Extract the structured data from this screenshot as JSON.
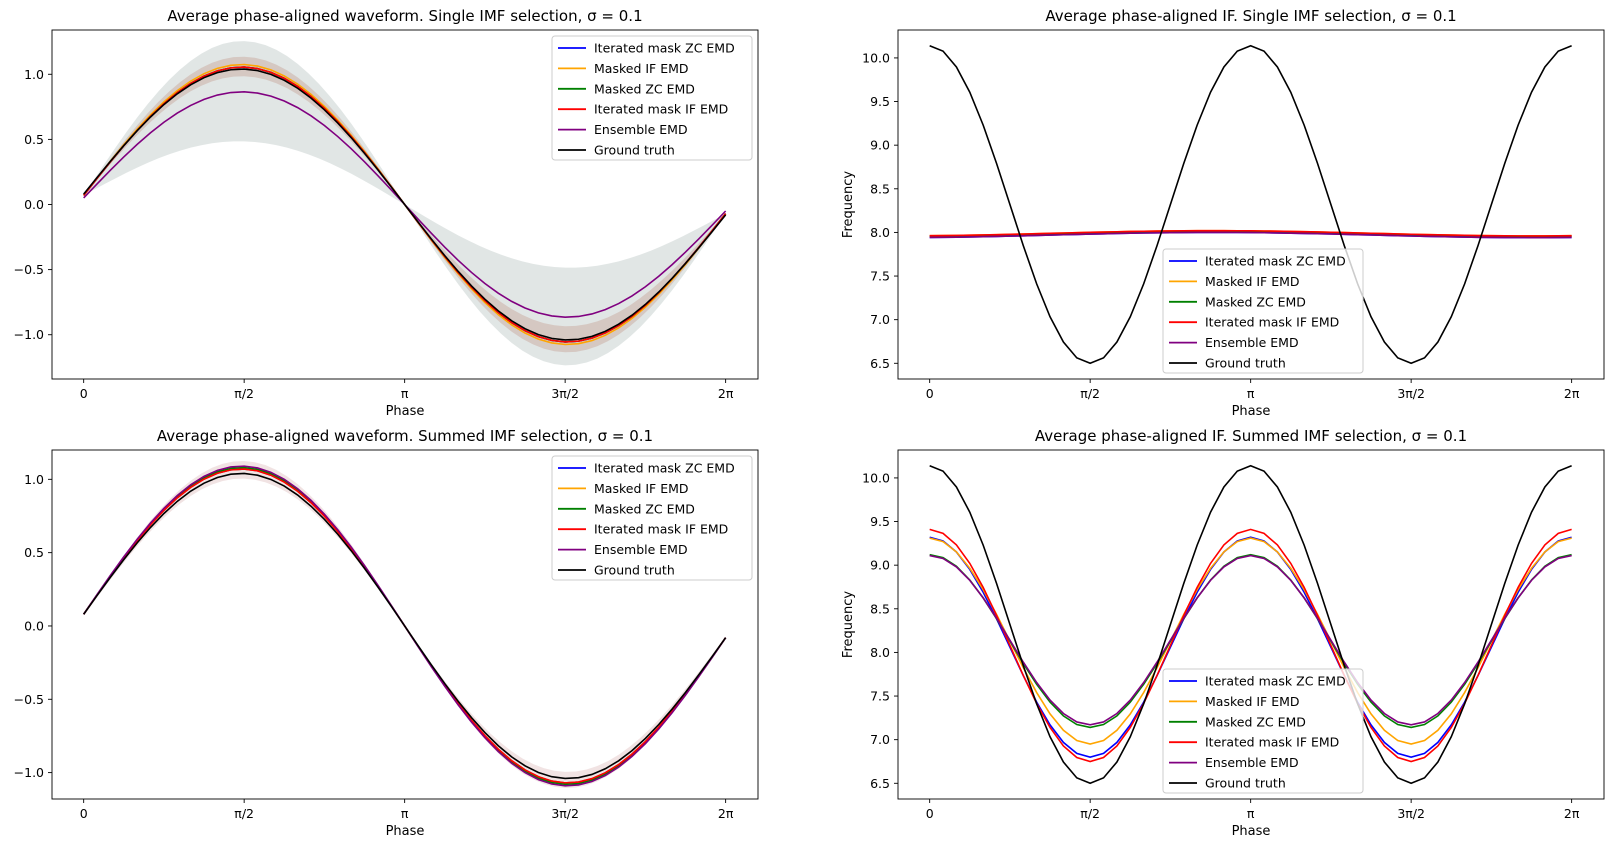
{
  "chart_data": [
    {
      "type": "line",
      "title": "Average phase-aligned waveform. Single IMF selection, σ = 0.1",
      "xlabel": "Phase",
      "ylabel": "",
      "xlim": [
        -0.31,
        6.6
      ],
      "ylim": [
        -1.34,
        1.34
      ],
      "xticks": [
        0,
        1.5708,
        3.1416,
        4.7124,
        6.2832
      ],
      "xticklabels": [
        "0",
        "π/2",
        "π",
        "3π/2",
        "2π"
      ],
      "yticks": [
        -1.0,
        -0.5,
        0.0,
        0.5,
        1.0
      ],
      "yticklabels": [
        "−1.0",
        "−0.5",
        "0.0",
        "0.5",
        "1.0"
      ],
      "legend": "top-right",
      "bands": [
        {
          "color": "#c8d2cf",
          "opacity": 0.55,
          "scale_pos": 1.22,
          "scale_neg": 1.2,
          "inner_pos": 0.45,
          "inner_neg": 0.45
        },
        {
          "color": "#c09080",
          "opacity": 0.35,
          "scale_pos": 1.1,
          "scale_neg": 1.1,
          "inner_pos": 0.95,
          "inner_neg": 0.9
        }
      ],
      "series": [
        {
          "name": "Iterated mask ZC EMD",
          "color": "#0000ff",
          "kind": "sine",
          "amp": 1.02,
          "offset_start": 0.07
        },
        {
          "name": "Masked IF EMD",
          "color": "#ffa500",
          "kind": "sine",
          "amp": 1.04,
          "offset_start": 0.07
        },
        {
          "name": "Masked ZC EMD",
          "color": "#008000",
          "kind": "sine",
          "amp": 1.02,
          "offset_start": 0.07
        },
        {
          "name": "Iterated mask IF EMD",
          "color": "#ff0000",
          "kind": "sine",
          "amp": 1.02,
          "offset_start": 0.07
        },
        {
          "name": "Ensemble EMD",
          "color": "#800080",
          "kind": "sine",
          "amp": 0.84,
          "offset_start": 0.05
        },
        {
          "name": "Ground truth",
          "color": "#000000",
          "kind": "sine",
          "amp": 1.0,
          "offset_start": 0.08
        }
      ]
    },
    {
      "type": "line",
      "title": "Average phase-aligned IF. Single IMF selection, σ = 0.1",
      "xlabel": "Phase",
      "ylabel": "Frequency",
      "xlim": [
        -0.31,
        6.6
      ],
      "ylim": [
        6.32,
        10.32
      ],
      "xticks": [
        0,
        1.5708,
        3.1416,
        4.7124,
        6.2832
      ],
      "xticklabels": [
        "0",
        "π/2",
        "π",
        "3π/2",
        "2π"
      ],
      "yticks": [
        6.5,
        7.0,
        7.5,
        8.0,
        8.5,
        9.0,
        9.5,
        10.0
      ],
      "yticklabels": [
        "6.5",
        "7.0",
        "7.5",
        "8.0",
        "8.5",
        "9.0",
        "9.5",
        "10.0"
      ],
      "legend": "lower-center",
      "series": [
        {
          "name": "Iterated mask ZC EMD",
          "color": "#0000ff",
          "kind": "flat",
          "base": 7.97,
          "wobble": 0.03
        },
        {
          "name": "Masked IF EMD",
          "color": "#ffa500",
          "kind": "flat",
          "base": 7.99,
          "wobble": 0.03
        },
        {
          "name": "Masked ZC EMD",
          "color": "#008000",
          "kind": "flat",
          "base": 7.98,
          "wobble": 0.025
        },
        {
          "name": "Iterated mask IF EMD",
          "color": "#ff0000",
          "kind": "flat",
          "base": 7.99,
          "wobble": 0.03
        },
        {
          "name": "Ensemble EMD",
          "color": "#800080",
          "kind": "flat",
          "base": 7.97,
          "wobble": 0.03
        },
        {
          "name": "Ground truth",
          "color": "#000000",
          "kind": "cos2",
          "mid": 8.32,
          "amp": 1.82
        }
      ]
    },
    {
      "type": "line",
      "title": "Average phase-aligned waveform. Summed IMF selection, σ = 0.1",
      "xlabel": "Phase",
      "ylabel": "",
      "xlim": [
        -0.31,
        6.6
      ],
      "ylim": [
        -1.18,
        1.2
      ],
      "xticks": [
        0,
        1.5708,
        3.1416,
        4.7124,
        6.2832
      ],
      "xticklabels": [
        "0",
        "π/2",
        "π",
        "3π/2",
        "2π"
      ],
      "yticks": [
        -1.0,
        -0.5,
        0.0,
        0.5,
        1.0
      ],
      "yticklabels": [
        "−1.0",
        "−0.5",
        "0.0",
        "0.5",
        "1.0"
      ],
      "legend": "top-right",
      "bands": [
        {
          "color": "#d8b0b0",
          "opacity": 0.35,
          "scale_pos": 1.09,
          "scale_neg": 1.07,
          "inner_pos": 0.97,
          "inner_neg": 0.96
        }
      ],
      "series": [
        {
          "name": "Iterated mask ZC EMD",
          "color": "#0000ff",
          "kind": "sine",
          "amp": 1.03,
          "offset_start": 0.08
        },
        {
          "name": "Masked IF EMD",
          "color": "#ffa500",
          "kind": "sine",
          "amp": 1.03,
          "offset_start": 0.08
        },
        {
          "name": "Masked ZC EMD",
          "color": "#008000",
          "kind": "sine",
          "amp": 1.04,
          "offset_start": 0.08
        },
        {
          "name": "Iterated mask IF EMD",
          "color": "#ff0000",
          "kind": "sine",
          "amp": 1.03,
          "offset_start": 0.08
        },
        {
          "name": "Ensemble EMD",
          "color": "#800080",
          "kind": "sine",
          "amp": 1.05,
          "offset_start": 0.08
        },
        {
          "name": "Ground truth",
          "color": "#000000",
          "kind": "sine",
          "amp": 1.0,
          "offset_start": 0.08
        }
      ]
    },
    {
      "type": "line",
      "title": "Average phase-aligned IF. Summed IMF selection, σ = 0.1",
      "xlabel": "Phase",
      "ylabel": "Frequency",
      "xlim": [
        -0.31,
        6.6
      ],
      "ylim": [
        6.32,
        10.32
      ],
      "xticks": [
        0,
        1.5708,
        3.1416,
        4.7124,
        6.2832
      ],
      "xticklabels": [
        "0",
        "π/2",
        "π",
        "3π/2",
        "2π"
      ],
      "yticks": [
        6.5,
        7.0,
        7.5,
        8.0,
        8.5,
        9.0,
        9.5,
        10.0
      ],
      "yticklabels": [
        "6.5",
        "7.0",
        "7.5",
        "8.0",
        "8.5",
        "9.0",
        "9.5",
        "10.0"
      ],
      "legend": "lower-center",
      "series": [
        {
          "name": "Iterated mask ZC EMD",
          "color": "#0000ff",
          "kind": "cos2",
          "mid": 8.06,
          "amp": 1.26
        },
        {
          "name": "Masked IF EMD",
          "color": "#ffa500",
          "kind": "cos2",
          "mid": 8.13,
          "amp": 1.18
        },
        {
          "name": "Masked ZC EMD",
          "color": "#008000",
          "kind": "cos2",
          "mid": 8.13,
          "amp": 0.99
        },
        {
          "name": "Iterated mask IF EMD",
          "color": "#ff0000",
          "kind": "cos2",
          "mid": 8.08,
          "amp": 1.33
        },
        {
          "name": "Ensemble EMD",
          "color": "#800080",
          "kind": "cos2",
          "mid": 8.14,
          "amp": 0.97
        },
        {
          "name": "Ground truth",
          "color": "#000000",
          "kind": "cos2",
          "mid": 8.32,
          "amp": 1.82
        }
      ]
    }
  ]
}
